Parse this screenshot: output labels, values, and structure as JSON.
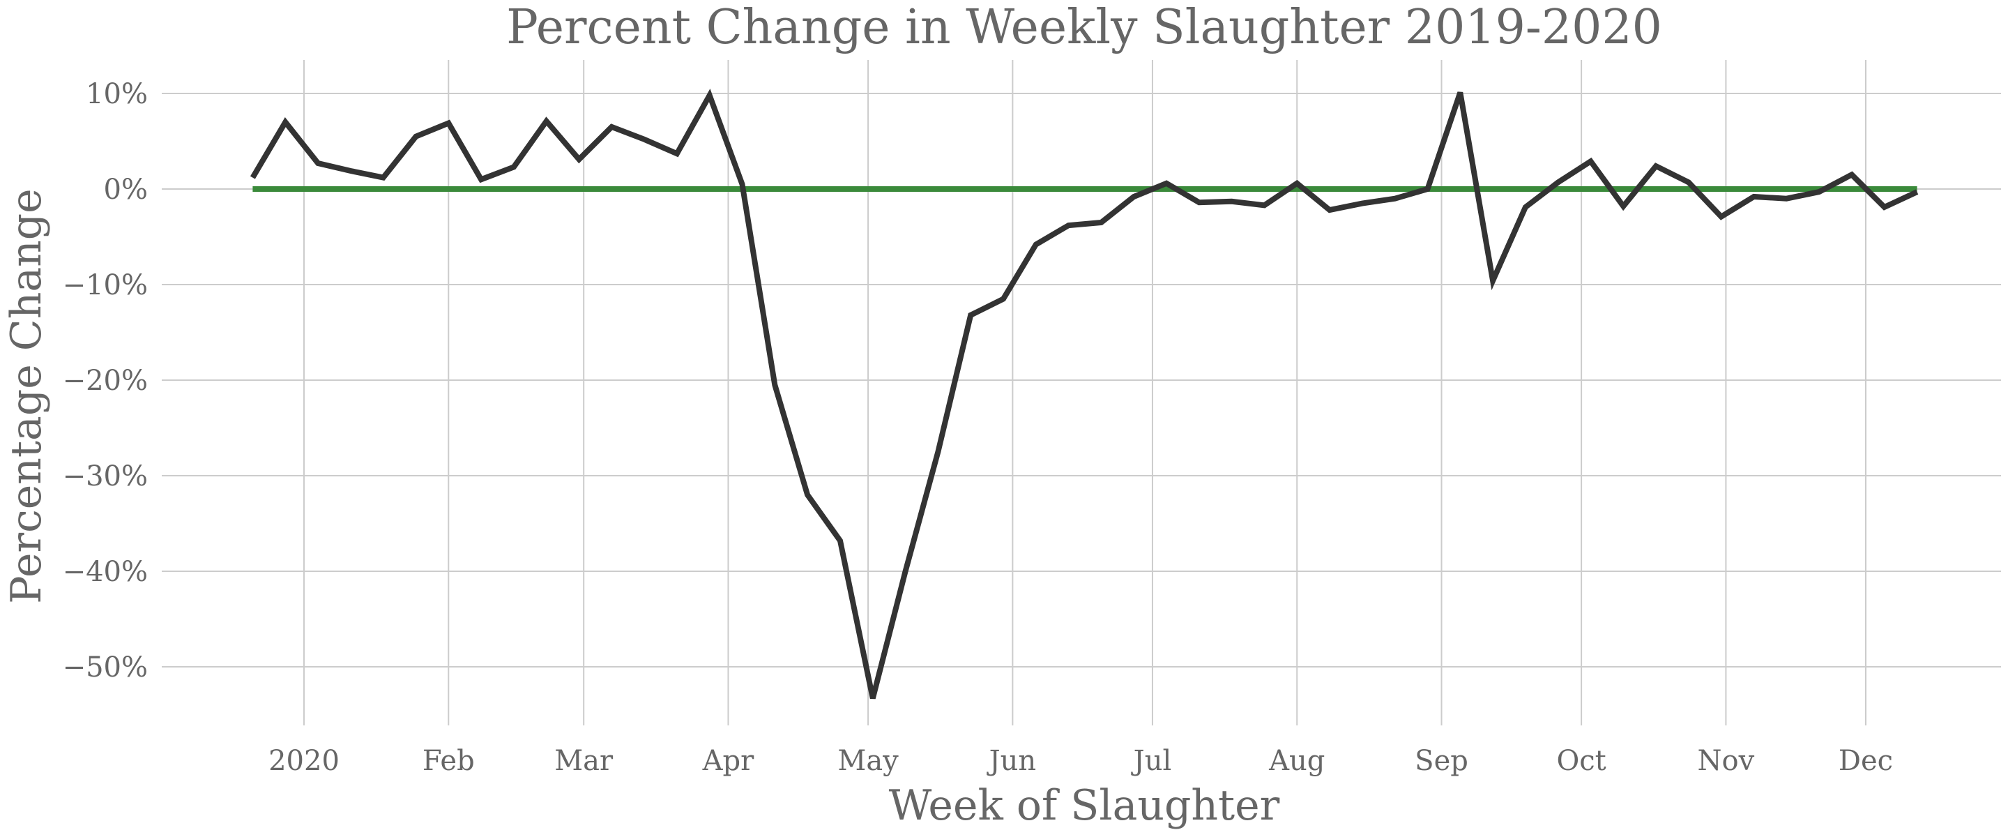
{
  "chart_data": {
    "type": "line",
    "title": "Percent Change in Weekly Slaughter 2019-2020",
    "xlabel": "Week of Slaughter",
    "ylabel": "Percentage Change",
    "ylim": [
      -56,
      13.5
    ],
    "yticks": [
      10,
      0,
      -10,
      -20,
      -30,
      -40,
      -50
    ],
    "ytick_labels": [
      "10%",
      "0%",
      "−10%",
      "−20%",
      "−30%",
      "−40%",
      "−50%"
    ],
    "xlim": [
      "2019-12-01",
      "2020-12-31"
    ],
    "xticks": [
      "2020-01-01",
      "2020-02-01",
      "2020-03-01",
      "2020-04-01",
      "2020-05-01",
      "2020-06-01",
      "2020-07-01",
      "2020-08-01",
      "2020-09-01",
      "2020-10-01",
      "2020-11-01",
      "2020-12-01"
    ],
    "xtick_labels": [
      "2020",
      "Feb",
      "Mar",
      "Apr",
      "May",
      "Jun",
      "Jul",
      "Aug",
      "Sep",
      "Oct",
      "Nov",
      "Dec"
    ],
    "grid": true,
    "series": [
      {
        "color": "#333333",
        "x": [
          "2019-12-21",
          "2019-12-28",
          "2020-01-04",
          "2020-01-11",
          "2020-01-18",
          "2020-01-25",
          "2020-02-01",
          "2020-02-08",
          "2020-02-15",
          "2020-02-22",
          "2020-02-29",
          "2020-03-07",
          "2020-03-14",
          "2020-03-21",
          "2020-03-28",
          "2020-04-04",
          "2020-04-11",
          "2020-04-18",
          "2020-04-25",
          "2020-05-02",
          "2020-05-09",
          "2020-05-16",
          "2020-05-23",
          "2020-05-30",
          "2020-06-06",
          "2020-06-13",
          "2020-06-20",
          "2020-06-27",
          "2020-07-04",
          "2020-07-11",
          "2020-07-18",
          "2020-07-25",
          "2020-08-01",
          "2020-08-08",
          "2020-08-15",
          "2020-08-22",
          "2020-08-29",
          "2020-09-05",
          "2020-09-12",
          "2020-09-19",
          "2020-09-26",
          "2020-10-03",
          "2020-10-10",
          "2020-10-17",
          "2020-10-24",
          "2020-10-31",
          "2020-11-07",
          "2020-11-14",
          "2020-11-21",
          "2020-11-28",
          "2020-12-05",
          "2020-12-12"
        ],
        "values": [
          1.2,
          7.0,
          2.7,
          1.9,
          1.2,
          5.5,
          6.9,
          1.0,
          2.3,
          7.1,
          3.1,
          6.5,
          5.2,
          3.7,
          9.8,
          0.5,
          -20.5,
          -32.0,
          -36.8,
          -53.3,
          -40.0,
          -27.5,
          -13.2,
          -11.5,
          -5.8,
          -3.8,
          -3.5,
          -0.8,
          0.6,
          -1.4,
          -1.3,
          -1.7,
          0.6,
          -2.2,
          -1.5,
          -1.0,
          0.0,
          10.1,
          -9.6,
          -1.9,
          0.7,
          2.9,
          -1.8,
          2.4,
          0.7,
          -2.9,
          -0.8,
          -1.0,
          -0.3,
          1.5,
          -1.9,
          -0.3
        ]
      },
      {
        "color": "#3a8a3a",
        "x": [
          "2019-12-21",
          "2020-12-12"
        ],
        "values": [
          0,
          0
        ]
      }
    ]
  }
}
